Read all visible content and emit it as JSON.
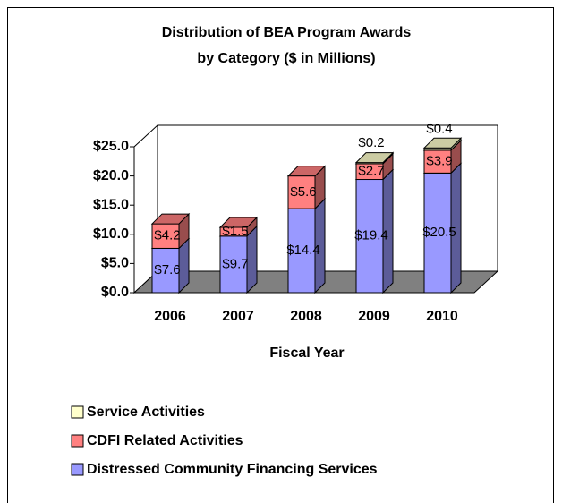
{
  "chart_data": {
    "type": "bar3d_stacked",
    "title": [
      "Distribution of BEA Program Awards",
      "by Category ($ in Millions)"
    ],
    "x_label": "Fiscal Year",
    "categories": [
      "2006",
      "2007",
      "2008",
      "2009",
      "2010"
    ],
    "series": [
      {
        "name": "Distressed Community Financing Services",
        "color": "#9999ff",
        "values": [
          7.6,
          9.7,
          14.4,
          19.4,
          20.5
        ],
        "value_labels": [
          "$7.6",
          "$9.7",
          "$14.4",
          "$19.4",
          "$20.5"
        ]
      },
      {
        "name": "CDFI Related Activities",
        "color": "#ff8080",
        "values": [
          4.2,
          1.5,
          5.6,
          2.7,
          3.9
        ],
        "value_labels": [
          "$4.2",
          "$1.5",
          "$5.6",
          "$2.7",
          "$3.9"
        ]
      },
      {
        "name": "Service Activities",
        "color": "#ffffcc",
        "values": [
          null,
          null,
          null,
          0.2,
          0.4
        ],
        "value_labels": [
          null,
          null,
          null,
          "$0.2",
          "$0.4"
        ]
      }
    ],
    "ylim": [
      0,
      25
    ],
    "yticks": [
      {
        "value": 0,
        "label": "$0.0"
      },
      {
        "value": 5,
        "label": "$5.0"
      },
      {
        "value": 10,
        "label": "$10.0"
      },
      {
        "value": 15,
        "label": "$15.0"
      },
      {
        "value": 20,
        "label": "$20.0"
      },
      {
        "value": 25,
        "label": "$25.0"
      }
    ]
  }
}
